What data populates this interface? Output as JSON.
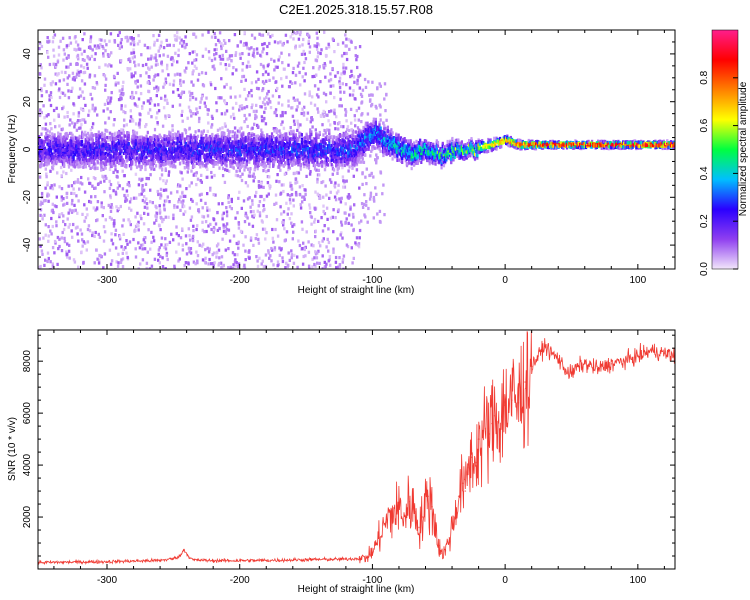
{
  "title": "C2E1.2025.318.15.57.R08",
  "chart_data": [
    {
      "type": "heatmap",
      "name": "spectrogram",
      "xlabel": "Height of straight line (km)",
      "ylabel": "Frequency (Hz)",
      "xlim": [
        -352,
        128
      ],
      "ylim": [
        -50,
        50
      ],
      "xticks": [
        -300,
        -200,
        -100,
        0,
        100
      ],
      "yticks": [
        -40,
        -20,
        0,
        20,
        40
      ],
      "colorbar": {
        "label": "Normalized spectral amplitude",
        "range": [
          0.0,
          1.0
        ],
        "ticks": [
          0.0,
          0.2,
          0.4,
          0.6,
          0.8
        ],
        "tick_labels": [
          "0.0",
          "0.2",
          "0.4",
          "0.6",
          "0.8"
        ],
        "colors": [
          "#f2e6fa",
          "#8f3ff0",
          "#2a00ff",
          "#00bfff",
          "#00ff40",
          "#ffff00",
          "#ff8000",
          "#ff0000",
          "#ff1e8c"
        ]
      },
      "band_center_hz": [
        [
          -352,
          0
        ],
        [
          -300,
          0
        ],
        [
          -200,
          0
        ],
        [
          -115,
          0
        ],
        [
          -100,
          7
        ],
        [
          -90,
          4
        ],
        [
          -80,
          0
        ],
        [
          -70,
          -2
        ],
        [
          -60,
          0
        ],
        [
          -50,
          -3
        ],
        [
          -40,
          0
        ],
        [
          -30,
          0
        ],
        [
          -20,
          1
        ],
        [
          -10,
          2
        ],
        [
          0,
          4
        ],
        [
          10,
          2
        ],
        [
          30,
          2
        ],
        [
          60,
          2
        ],
        [
          128,
          2
        ]
      ],
      "band_halfwidth_hz": [
        [
          -352,
          9
        ],
        [
          -115,
          9
        ],
        [
          -100,
          7
        ],
        [
          -80,
          6
        ],
        [
          -60,
          5
        ],
        [
          -40,
          4
        ],
        [
          -20,
          3
        ],
        [
          0,
          2
        ],
        [
          30,
          1.5
        ],
        [
          128,
          1.5
        ]
      ],
      "band_peak_amplitude": [
        [
          -352,
          0.22
        ],
        [
          -200,
          0.25
        ],
        [
          -120,
          0.27
        ],
        [
          -100,
          0.33
        ],
        [
          -80,
          0.4
        ],
        [
          -50,
          0.45
        ],
        [
          -20,
          0.6
        ],
        [
          0,
          0.75
        ],
        [
          20,
          0.88
        ],
        [
          128,
          0.92
        ]
      ],
      "noise_extent_km": [
        -352,
        -110
      ]
    },
    {
      "type": "line",
      "name": "snr",
      "xlabel": "Height of straight line (km)",
      "ylabel": "SNR (10 * v/v)",
      "xlim": [
        -352,
        128
      ],
      "ylim": [
        0,
        9200
      ],
      "xticks": [
        -300,
        -200,
        -100,
        0,
        100
      ],
      "yticks": [
        2000,
        4000,
        6000,
        8000
      ],
      "color": "#f03a32",
      "series": [
        {
          "name": "SNR",
          "x": [
            -352,
            -300,
            -260,
            -250,
            -245,
            -242,
            -238,
            -235,
            -220,
            -180,
            -150,
            -120,
            -105,
            -100,
            -95,
            -90,
            -85,
            -80,
            -75,
            -72,
            -68,
            -65,
            -62,
            -58,
            -55,
            -52,
            -50,
            -48,
            -45,
            -42,
            -38,
            -35,
            -32,
            -30,
            -28,
            -25,
            -22,
            -20,
            -18,
            -15,
            -12,
            -10,
            -8,
            -5,
            -2,
            0,
            5,
            10,
            15,
            20,
            25,
            30,
            35,
            40,
            45,
            50,
            55,
            60,
            70,
            80,
            90,
            100,
            110,
            120,
            128
          ],
          "y": [
            250,
            280,
            330,
            400,
            500,
            750,
            450,
            350,
            320,
            330,
            360,
            380,
            420,
            650,
            1200,
            1800,
            2100,
            2300,
            2000,
            2600,
            2200,
            1600,
            2000,
            2800,
            2400,
            1500,
            900,
            600,
            700,
            1200,
            2000,
            2800,
            3300,
            3000,
            3900,
            4300,
            4100,
            5000,
            4600,
            5400,
            5200,
            5600,
            5900,
            5700,
            6000,
            6300,
            6500,
            6400,
            7200,
            7800,
            8200,
            8600,
            8300,
            8100,
            7700,
            7500,
            7800,
            7900,
            7700,
            7900,
            8000,
            8200,
            8400,
            8300,
            8200
          ]
        }
      ]
    }
  ]
}
